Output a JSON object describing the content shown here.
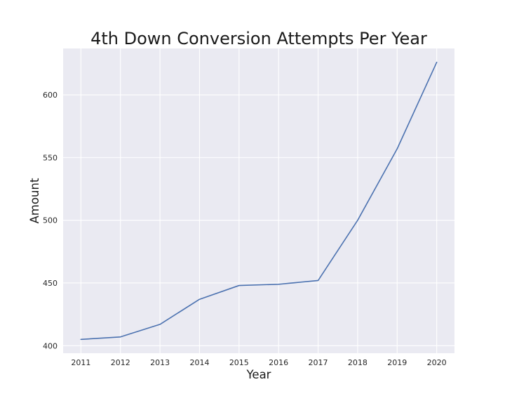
{
  "chart_data": {
    "type": "line",
    "title": "4th Down Conversion Attempts Per Year",
    "xlabel": "Year",
    "ylabel": "Amount",
    "x": [
      2011,
      2012,
      2013,
      2014,
      2015,
      2016,
      2017,
      2018,
      2019,
      2020
    ],
    "series": [
      {
        "values": [
          405,
          407,
          417,
          437,
          448,
          449,
          452,
          500,
          557,
          626
        ]
      }
    ],
    "xlim": [
      2010.55,
      2020.45
    ],
    "ylim": [
      394,
      637
    ],
    "x_ticks": [
      "2011",
      "2012",
      "2013",
      "2014",
      "2015",
      "2016",
      "2017",
      "2018",
      "2019",
      "2020"
    ],
    "y_ticks": [
      "400",
      "450",
      "500",
      "550",
      "600"
    ],
    "grid": true,
    "legend": "none",
    "colors": {
      "plot_background": "#eaeaf2",
      "grid": "#ffffff",
      "line": "#4c72b0"
    }
  }
}
